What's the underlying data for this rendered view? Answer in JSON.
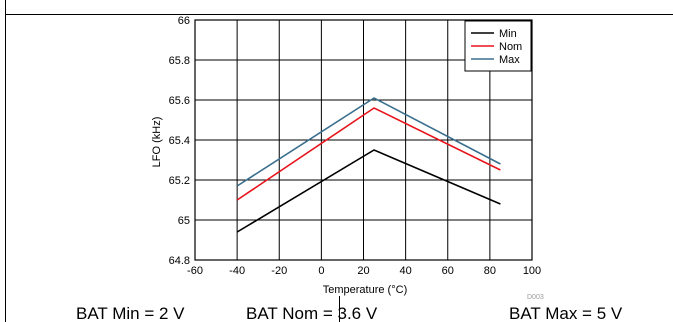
{
  "chart_data": {
    "type": "line",
    "title": "",
    "xlabel": "Temperature (°C)",
    "ylabel": "LFO (kHz)",
    "xlim": [
      -60,
      100
    ],
    "ylim": [
      64.8,
      66
    ],
    "x_ticks": [
      "-60",
      "-40",
      "-20",
      "0",
      "20",
      "40",
      "60",
      "80",
      "100"
    ],
    "y_ticks": [
      "64.8",
      "65",
      "65.2",
      "65.4",
      "65.6",
      "65.8",
      "66"
    ],
    "grid": true,
    "legend_position": "top-right",
    "watermark": "D003",
    "series": [
      {
        "name": "Min",
        "color": "#000000",
        "x": [
          -40,
          25,
          85
        ],
        "y": [
          64.94,
          65.35,
          65.08
        ]
      },
      {
        "name": "Nom",
        "color": "#e8141c",
        "x": [
          -40,
          25,
          85
        ],
        "y": [
          65.1,
          65.56,
          65.25
        ]
      },
      {
        "name": "Max",
        "color": "#3a6f8e",
        "x": [
          -40,
          25,
          85
        ],
        "y": [
          65.17,
          65.61,
          65.28
        ]
      }
    ]
  },
  "captions": {
    "min": "BAT Min = 2 V",
    "nom": "BAT Nom = 3.6 V",
    "max": "BAT Max = 5 V"
  }
}
